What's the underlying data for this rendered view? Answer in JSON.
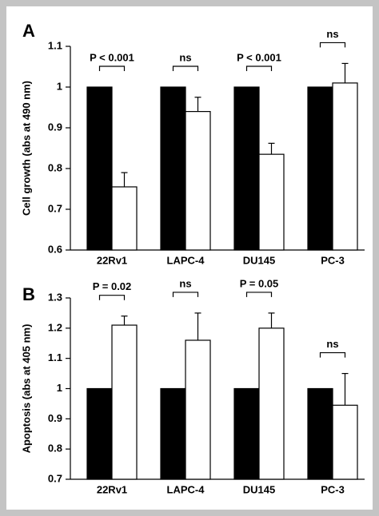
{
  "chart_data": [
    {
      "type": "bar",
      "panel_label": "A",
      "y_label": "Cell growth (abs at 490 nm)",
      "categories": [
        "22Rv1",
        "LAPC-4",
        "DU145",
        "PC-3"
      ],
      "series": [
        {
          "color": "#000000",
          "values": [
            1,
            1,
            1,
            1
          ]
        },
        {
          "color": "#ffffff",
          "values": [
            0.755,
            0.94,
            0.835,
            1.01
          ],
          "errors": [
            0.035,
            0.035,
            0.027,
            0.048
          ]
        }
      ],
      "annotations": [
        "P < 0.001",
        "ns",
        "P < 0.001",
        "ns"
      ],
      "ylim": [
        0.6,
        1.1
      ],
      "yticks": [
        0.6,
        0.7,
        0.8,
        0.9,
        1,
        1.1
      ]
    },
    {
      "type": "bar",
      "panel_label": "B",
      "y_label": "Apoptosis (abs at 405 nm)",
      "categories": [
        "22Rv1",
        "LAPC-4",
        "DU145",
        "PC-3"
      ],
      "series": [
        {
          "color": "#000000",
          "values": [
            1,
            1,
            1,
            1
          ]
        },
        {
          "color": "#ffffff",
          "values": [
            1.21,
            1.16,
            1.2,
            0.945
          ],
          "errors": [
            0.03,
            0.09,
            0.05,
            0.105
          ]
        }
      ],
      "annotations": [
        "P = 0.02",
        "ns",
        "P = 0.05",
        "ns"
      ],
      "ylim": [
        0.7,
        1.3
      ],
      "yticks": [
        0.7,
        0.8,
        0.9,
        1,
        1.1,
        1.2,
        1.3
      ]
    }
  ]
}
